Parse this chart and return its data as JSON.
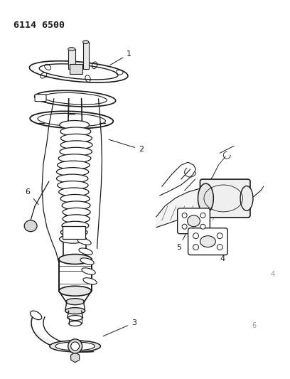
{
  "title": "6114 6500",
  "bg_color": "#ffffff",
  "line_color": "#1a1a1a",
  "figsize": [
    4.08,
    5.33
  ],
  "dpi": 100
}
